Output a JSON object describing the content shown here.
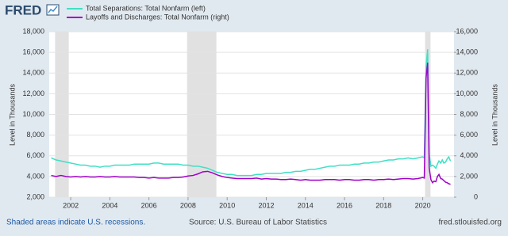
{
  "chart_data": {
    "type": "line",
    "logo": "FRED",
    "footer_left": "Shaded areas indicate U.S. recessions.",
    "footer_center": "Source: U.S. Bureau of Labor Statistics",
    "footer_right": "fred.stlouisfed.org",
    "ylabel": "Level in Thousands",
    "y2label": "Level in Thousands",
    "x": [
      2001.0,
      2001.25,
      2001.5,
      2001.75,
      2002.0,
      2002.25,
      2002.5,
      2002.75,
      2003.0,
      2003.25,
      2003.5,
      2003.75,
      2004.0,
      2004.25,
      2004.5,
      2004.75,
      2005.0,
      2005.25,
      2005.5,
      2005.75,
      2006.0,
      2006.25,
      2006.5,
      2006.75,
      2007.0,
      2007.25,
      2007.5,
      2007.75,
      2008.0,
      2008.25,
      2008.5,
      2008.75,
      2009.0,
      2009.25,
      2009.5,
      2009.75,
      2010.0,
      2010.25,
      2010.5,
      2010.75,
      2011.0,
      2011.25,
      2011.5,
      2011.75,
      2012.0,
      2012.25,
      2012.5,
      2012.75,
      2013.0,
      2013.25,
      2013.5,
      2013.75,
      2014.0,
      2014.25,
      2014.5,
      2014.75,
      2015.0,
      2015.25,
      2015.5,
      2015.75,
      2016.0,
      2016.25,
      2016.5,
      2016.75,
      2017.0,
      2017.25,
      2017.5,
      2017.75,
      2018.0,
      2018.25,
      2018.5,
      2018.75,
      2019.0,
      2019.25,
      2019.5,
      2019.75,
      2020.0,
      2020.08,
      2020.17,
      2020.25,
      2020.33,
      2020.42,
      2020.5,
      2020.58,
      2020.67,
      2020.75,
      2020.83,
      2020.92,
      2021.0,
      2021.08,
      2021.17,
      2021.25,
      2021.33,
      2021.42
    ],
    "series": [
      {
        "name": "Total Separations: Total Nonfarm (left)",
        "color": "#3fe0c5",
        "axis": "y",
        "values": [
          5800,
          5600,
          5500,
          5400,
          5300,
          5200,
          5100,
          5100,
          5000,
          5000,
          4900,
          5000,
          5000,
          5100,
          5100,
          5100,
          5100,
          5200,
          5200,
          5200,
          5200,
          5300,
          5300,
          5200,
          5200,
          5200,
          5200,
          5100,
          5100,
          5000,
          5000,
          4900,
          4800,
          4600,
          4400,
          4300,
          4200,
          4200,
          4100,
          4100,
          4100,
          4100,
          4200,
          4200,
          4300,
          4300,
          4300,
          4300,
          4400,
          4400,
          4500,
          4500,
          4600,
          4700,
          4700,
          4800,
          4900,
          5000,
          5000,
          5100,
          5100,
          5100,
          5200,
          5200,
          5300,
          5300,
          5400,
          5400,
          5500,
          5600,
          5600,
          5700,
          5700,
          5800,
          5700,
          5800,
          5900,
          5800,
          14500,
          16300,
          6200,
          5000,
          5100,
          5000,
          4800,
          5200,
          5500,
          5300,
          5600,
          5300,
          5400,
          5700,
          5900,
          5500
        ]
      },
      {
        "name": "Layoffs and Discharges: Total Nonfarm (right)",
        "color": "#a000c8",
        "axis": "y2",
        "values": [
          2100,
          2000,
          2100,
          2000,
          1950,
          2000,
          1950,
          2000,
          1950,
          1950,
          2000,
          1950,
          1950,
          2000,
          1950,
          1950,
          1950,
          1950,
          1900,
          1900,
          1850,
          1900,
          1850,
          1850,
          1850,
          1900,
          1900,
          1950,
          2050,
          2100,
          2250,
          2450,
          2500,
          2350,
          2150,
          2000,
          1900,
          1850,
          1800,
          1800,
          1800,
          1800,
          1850,
          1750,
          1800,
          1750,
          1750,
          1700,
          1700,
          1750,
          1700,
          1650,
          1700,
          1650,
          1650,
          1650,
          1700,
          1700,
          1700,
          1650,
          1700,
          1700,
          1650,
          1650,
          1700,
          1700,
          1650,
          1700,
          1700,
          1750,
          1700,
          1750,
          1800,
          1800,
          1750,
          1800,
          1900,
          1850,
          11500,
          13000,
          2800,
          1700,
          1400,
          1550,
          1500,
          2000,
          2200,
          1800,
          1750,
          1600,
          1450,
          1400,
          1300,
          1250
        ]
      }
    ],
    "recessions": [
      [
        2001.2,
        2001.9
      ],
      [
        2007.95,
        2009.45
      ],
      [
        2020.12,
        2020.4
      ]
    ],
    "xlim": [
      2000.9,
      2021.6
    ],
    "xticks": [
      2002,
      2004,
      2006,
      2008,
      2010,
      2012,
      2014,
      2016,
      2018,
      2020
    ],
    "ylim": [
      2000,
      18000
    ],
    "yticks": [
      {
        "value": 2000,
        "label": "2,000"
      },
      {
        "value": 4000,
        "label": "4,000"
      },
      {
        "value": 6000,
        "label": "6,000"
      },
      {
        "value": 8000,
        "label": "8,000"
      },
      {
        "value": 10000,
        "label": "10,000"
      },
      {
        "value": 12000,
        "label": "12,000"
      },
      {
        "value": 14000,
        "label": "14,000"
      },
      {
        "value": 16000,
        "label": "16,000"
      },
      {
        "value": 18000,
        "label": "18,000"
      }
    ],
    "y2lim": [
      0,
      16000
    ],
    "y2ticks": [
      0,
      {
        "value": 2000,
        "label": "2,000"
      },
      {
        "value": 4000,
        "label": "4,000"
      },
      {
        "value": 6000,
        "label": "6,000"
      },
      {
        "value": 8000,
        "label": "8,000"
      },
      {
        "value": 10000,
        "label": "10,000"
      },
      {
        "value": 12000,
        "label": "12,000"
      },
      {
        "value": 14000,
        "label": "14,000"
      },
      {
        "value": 16000,
        "label": "16,000"
      }
    ],
    "grid": true
  }
}
